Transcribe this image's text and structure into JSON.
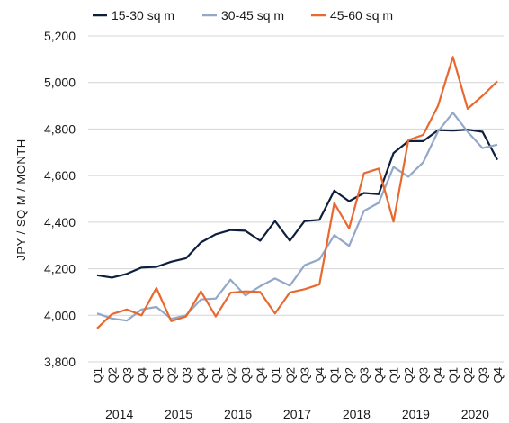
{
  "chart_data": {
    "type": "line",
    "title": "",
    "xlabel": "",
    "ylabel": "JPY / SQ M / MONTH",
    "ylim": [
      3800,
      5200
    ],
    "yticks": [
      "3,800",
      "4,000",
      "4,200",
      "4,400",
      "4,600",
      "4,800",
      "5,000",
      "5,200"
    ],
    "ytick_values": [
      3800,
      4000,
      4200,
      4400,
      4600,
      4800,
      5000,
      5200
    ],
    "quarters": [
      "Q1",
      "Q2",
      "Q3",
      "Q4",
      "Q1",
      "Q2",
      "Q3",
      "Q4",
      "Q1",
      "Q2",
      "Q3",
      "Q4",
      "Q1",
      "Q2",
      "Q3",
      "Q4",
      "Q1",
      "Q2",
      "Q3",
      "Q4",
      "Q1",
      "Q2",
      "Q3",
      "Q4",
      "Q1",
      "Q2",
      "Q3",
      "Q4"
    ],
    "years": [
      "2014",
      "2015",
      "2016",
      "2017",
      "2018",
      "2019",
      "2020"
    ],
    "grid": "horizontal",
    "legend_position": "top",
    "series": [
      {
        "name": "15-30 sq m",
        "color": "#0d1f3c",
        "values": [
          4172,
          4162,
          4178,
          4205,
          4208,
          4230,
          4245,
          4313,
          4348,
          4366,
          4363,
          4320,
          4405,
          4320,
          4405,
          4410,
          4535,
          4490,
          4525,
          4520,
          4697,
          4748,
          4748,
          4795,
          4793,
          4797,
          4788,
          4668
        ]
      },
      {
        "name": "30-45 sq m",
        "color": "#93a8c8",
        "values": [
          4008,
          3986,
          3977,
          4025,
          4036,
          3985,
          4000,
          4068,
          4072,
          4153,
          4085,
          4125,
          4158,
          4127,
          4215,
          4240,
          4344,
          4298,
          4448,
          4483,
          4637,
          4595,
          4657,
          4790,
          4870,
          4788,
          4718,
          4733
        ]
      },
      {
        "name": "45-60 sq m",
        "color": "#e8692f",
        "values": [
          3944,
          4005,
          4025,
          4000,
          4117,
          3975,
          3995,
          4103,
          3995,
          4097,
          4103,
          4100,
          4008,
          4098,
          4112,
          4133,
          4482,
          4373,
          4610,
          4630,
          4402,
          4752,
          4775,
          4900,
          5110,
          4887,
          4943,
          5005
        ]
      }
    ]
  }
}
